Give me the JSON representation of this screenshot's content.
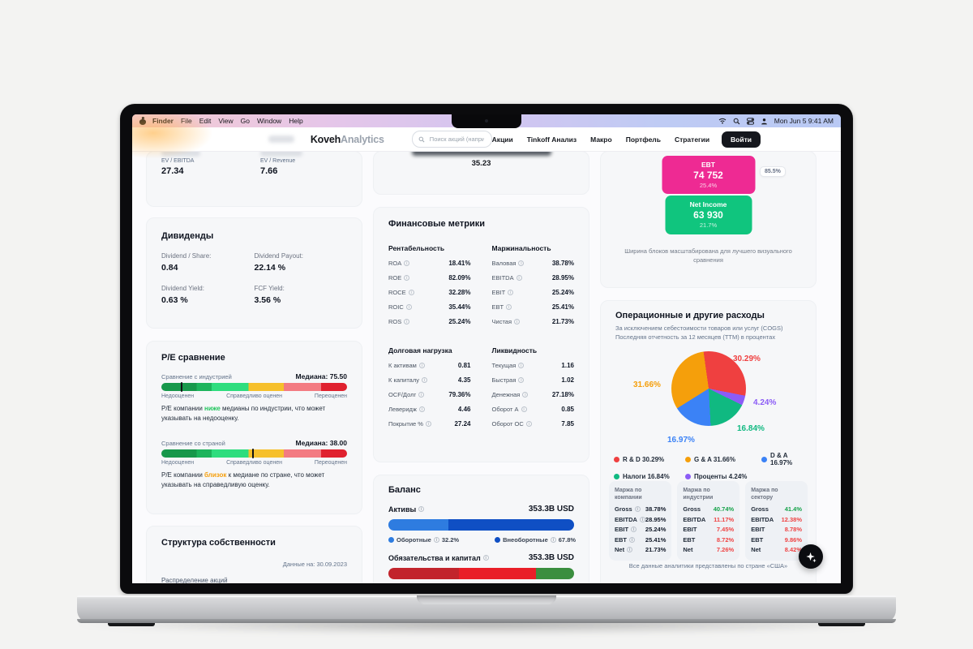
{
  "menubar": {
    "items": [
      "Finder",
      "File",
      "Edit",
      "View",
      "Go",
      "Window",
      "Help"
    ],
    "clock": "Mon Jun 5  9:41 AM"
  },
  "header": {
    "brand_bold": "Koveh",
    "brand_light": "Analytics",
    "search_placeholder": "Поиск акций (например",
    "nav": [
      "Акции",
      "Tinkoff Анализ",
      "Макро",
      "Портфель",
      "Стратегии"
    ],
    "login_label": "Войти"
  },
  "valuation": {
    "metrics": [
      {
        "label": "EV / EBITDA",
        "value": "27.34"
      },
      {
        "label": "EV / Revenue",
        "value": "7.66"
      }
    ]
  },
  "pe_value_card": {
    "value": "35.23"
  },
  "dividends": {
    "title": "Дивиденды",
    "items": [
      {
        "label": "Dividend / Share:",
        "value": "0.84"
      },
      {
        "label": "Dividend Payout:",
        "value": "22.14 %"
      },
      {
        "label": "Dividend Yield:",
        "value": "0.63 %"
      },
      {
        "label": "FCF Yield:",
        "value": "3.56 %"
      }
    ]
  },
  "pe_compare": {
    "title": "P/E сравнение",
    "scale_labels": [
      "Недооценен",
      "Справедливо оценен",
      "Переоценен"
    ],
    "industry": {
      "label": "Сравнение с индустрией",
      "median_label": "Медиана: 75.50",
      "marker_pct": 10.5,
      "note_before": "P/E компании ",
      "note_word": "ниже",
      "note_word_color": "#22c55e",
      "note_after": " медианы по индустрии, что может указывать на недооценку."
    },
    "country": {
      "label": "Сравнение со страной",
      "median_label": "Медиана: 38.00",
      "marker_pct": 49,
      "note_before": "P/E компании ",
      "note_word": "близок",
      "note_word_color": "#f59e0b",
      "note_after": " к медиане по стране, что может указывать на справедливую оценку."
    }
  },
  "ownership": {
    "title": "Структура собственности",
    "as_of": "Данные на: 30.09.2023",
    "subtitle": "Распределение акций"
  },
  "metrics": {
    "title": "Финансовые метрики",
    "groups": [
      {
        "title": "Рентабельность",
        "rows": [
          {
            "label": "ROA",
            "value": "18.41%",
            "info": true
          },
          {
            "label": "ROE",
            "value": "82.09%",
            "info": true
          },
          {
            "label": "ROCE",
            "value": "32.28%",
            "info": true
          },
          {
            "label": "ROIC",
            "value": "35.44%",
            "info": true
          },
          {
            "label": "ROS",
            "value": "25.24%",
            "info": true
          }
        ]
      },
      {
        "title": "Маржинальность",
        "rows": [
          {
            "label": "Валовая",
            "value": "38.78%",
            "info": true
          },
          {
            "label": "EBITDA",
            "value": "28.95%",
            "info": true
          },
          {
            "label": "EBIT",
            "value": "25.24%",
            "info": true
          },
          {
            "label": "EBT",
            "value": "25.41%",
            "info": true
          },
          {
            "label": "Чистая",
            "value": "21.73%",
            "info": true
          }
        ]
      },
      {
        "title": "Долговая нагрузка",
        "rows": [
          {
            "label": "К активам",
            "value": "0.81",
            "info": true
          },
          {
            "label": "К капиталу",
            "value": "4.35",
            "info": true
          },
          {
            "label": "OCF/Долг",
            "value": "79.36%",
            "info": true
          },
          {
            "label": "Леверидж",
            "value": "4.46",
            "info": true
          },
          {
            "label": "Покрытие %",
            "value": "27.24",
            "info": true
          }
        ]
      },
      {
        "title": "Ликвидность",
        "rows": [
          {
            "label": "Текущая",
            "value": "1.16",
            "info": true
          },
          {
            "label": "Быстрая",
            "value": "1.02",
            "info": true
          },
          {
            "label": "Денежная",
            "value": "27.18%",
            "info": true
          },
          {
            "label": "Оборот А",
            "value": "0.85",
            "info": true
          },
          {
            "label": "Оборот ОС",
            "value": "7.85",
            "info": true
          }
        ]
      }
    ]
  },
  "balance": {
    "title": "Баланс",
    "assets": {
      "label": "Активы",
      "total": "353.3B USD",
      "segments": [
        {
          "label": "Оборотные",
          "pct": "32.2%",
          "value": 32.2,
          "color": "#2e7ce0"
        },
        {
          "label": "Внеоборотные",
          "pct": "67.8%",
          "value": 67.8,
          "color": "#0f4fc4"
        }
      ]
    },
    "liabilities": {
      "label": "Обязательства и капитал",
      "total": "353.3B USD",
      "segments": [
        {
          "value": 38,
          "color": "#c2242c"
        },
        {
          "value": 41.5,
          "color": "#e91e28"
        },
        {
          "value": 20.5,
          "color": "#3b8e3f"
        }
      ]
    }
  },
  "waterfall": {
    "blocks": [
      {
        "name": "EBT",
        "value": "74 752",
        "pct": "25.4%",
        "color": "#ee2a93"
      },
      {
        "name": "Net Income",
        "value": "63 930",
        "pct": "21.7%",
        "color": "#10c57e"
      }
    ],
    "badge": "85.5%",
    "caption": "Ширина блоков масштабирована для лучшего визуального сравнения"
  },
  "expenses": {
    "title": "Операционные и другие расходы",
    "subtitle1": "За исключением себестоимости товаров или услуг (COGS)",
    "subtitle2": "Последняя отчетность за 12 месяцев (TTM) в процентах",
    "chart_data": {
      "type": "pie",
      "labels": [
        "R & D",
        "Проценты",
        "Налоги",
        "D & A",
        "G & A"
      ],
      "values": [
        30.29,
        4.24,
        16.84,
        16.97,
        31.66
      ],
      "colors": [
        "#ef4040",
        "#8b5cf6",
        "#10b981",
        "#3b82f6",
        "#f59f0b"
      ],
      "start_angle_deg": -8,
      "unit": "%"
    },
    "callouts": [
      {
        "text": "30.29%",
        "color": "#ef4040"
      },
      {
        "text": "31.66%",
        "color": "#f59f0b"
      },
      {
        "text": "4.24%",
        "color": "#8b5cf6"
      },
      {
        "text": "16.84%",
        "color": "#10b981"
      },
      {
        "text": "16.97%",
        "color": "#3b82f6"
      }
    ],
    "legend": [
      {
        "label": "R & D 30.29%",
        "color": "#ef4040"
      },
      {
        "label": "G & A 31.66%",
        "color": "#f59f0b"
      },
      {
        "label": "D & A 16.97%",
        "color": "#3b82f6"
      },
      {
        "label": "Налоги 16.84%",
        "color": "#10b981"
      },
      {
        "label": "Проценты 4.24%",
        "color": "#8b5cf6"
      }
    ]
  },
  "margin_tables": {
    "tables": [
      {
        "title": "Маржа по компании",
        "rows": [
          {
            "label": "Gross",
            "value": "38.78%",
            "info": true
          },
          {
            "label": "EBITDA",
            "value": "28.95%",
            "info": true
          },
          {
            "label": "EBIT",
            "value": "25.24%",
            "info": true
          },
          {
            "label": "EBT",
            "value": "25.41%",
            "info": true
          },
          {
            "label": "Net",
            "value": "21.73%",
            "info": true
          }
        ]
      },
      {
        "title": "Маржа по индустрии",
        "rows": [
          {
            "label": "Gross",
            "value": "40.74%",
            "color": "#16a34a"
          },
          {
            "label": "EBITDA",
            "value": "11.17%",
            "color": "#ef4444"
          },
          {
            "label": "EBIT",
            "value": "7.45%",
            "color": "#ef4444"
          },
          {
            "label": "EBT",
            "value": "8.72%",
            "color": "#ef4444"
          },
          {
            "label": "Net",
            "value": "7.26%",
            "color": "#ef4444"
          }
        ]
      },
      {
        "title": "Маржа по сектору",
        "rows": [
          {
            "label": "Gross",
            "value": "41.4%",
            "color": "#16a34a"
          },
          {
            "label": "EBITDA",
            "value": "12.38%",
            "color": "#ef4444"
          },
          {
            "label": "EBIT",
            "value": "8.78%",
            "color": "#ef4444"
          },
          {
            "label": "EBT",
            "value": "9.86%",
            "color": "#ef4444"
          },
          {
            "label": "Net",
            "value": "8.42%",
            "color": "#ef4444"
          }
        ]
      }
    ],
    "footer": "Все данные аналитики представлены по стране «США»"
  }
}
